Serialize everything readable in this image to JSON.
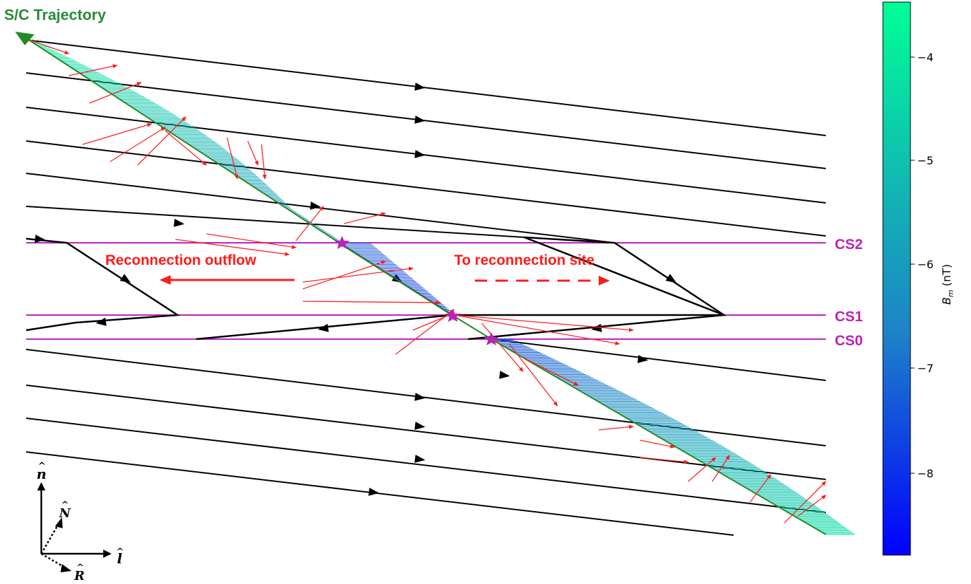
{
  "title_trajectory": "S/C Trajectory",
  "labels": {
    "outflow": "Reconnection outflow",
    "to_site": "To reconnection site"
  },
  "current_sheets": [
    "CS2",
    "CS1",
    "CS0"
  ],
  "colorbar": {
    "label": "B",
    "label_sub": "m",
    "label_unit": "(nT)",
    "ticks": [
      "−4",
      "−5",
      "−6",
      "−7",
      "−8"
    ]
  },
  "axes_symbols": [
    "n",
    "N",
    "l",
    "R"
  ],
  "colors": {
    "field_line": "#000000",
    "trajectory": "#228b22",
    "current_sheet": "#bb22bb",
    "flow_arrows": "#ff2020",
    "title": "#2a8a3a",
    "annotation": "#ff1a1a",
    "colorbar_top": "#00ff96",
    "colorbar_mid": "#1e82c8",
    "colorbar_bottom": "#0000ff"
  }
}
